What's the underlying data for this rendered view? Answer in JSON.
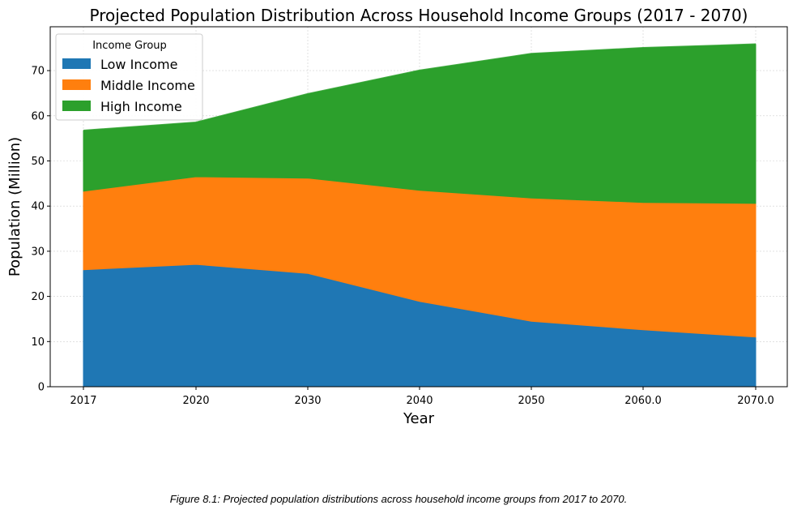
{
  "chart_data": {
    "type": "area",
    "stacked": true,
    "title": "Projected Population Distribution Across Household Income Groups (2017 - 2070)",
    "xlabel": "Year",
    "ylabel": "Population (Million)",
    "categories": [
      "2017",
      "2020",
      "2030",
      "2040",
      "2050",
      "2060.0",
      "2070.0"
    ],
    "ylim": [
      0,
      80
    ],
    "yticks": [
      0,
      10,
      20,
      30,
      40,
      50,
      60,
      70
    ],
    "grid": true,
    "legend": {
      "title": "Income Group",
      "placement": "top-left"
    },
    "series": [
      {
        "name": "Low Income",
        "color": "#1f77b4",
        "values": [
          25.9,
          27.1,
          25.1,
          18.9,
          14.5,
          12.6,
          11.0
        ]
      },
      {
        "name": "Middle Income",
        "color": "#ff7f0e",
        "values": [
          17.4,
          19.4,
          21.1,
          24.6,
          27.3,
          28.2,
          29.6
        ]
      },
      {
        "name": "High Income",
        "color": "#2ca02c",
        "values": [
          13.4,
          12.0,
          18.6,
          26.5,
          31.9,
          34.2,
          35.2
        ]
      }
    ]
  },
  "caption": "Figure 8.1: Projected population distributions across household income groups from 2017 to 2070."
}
